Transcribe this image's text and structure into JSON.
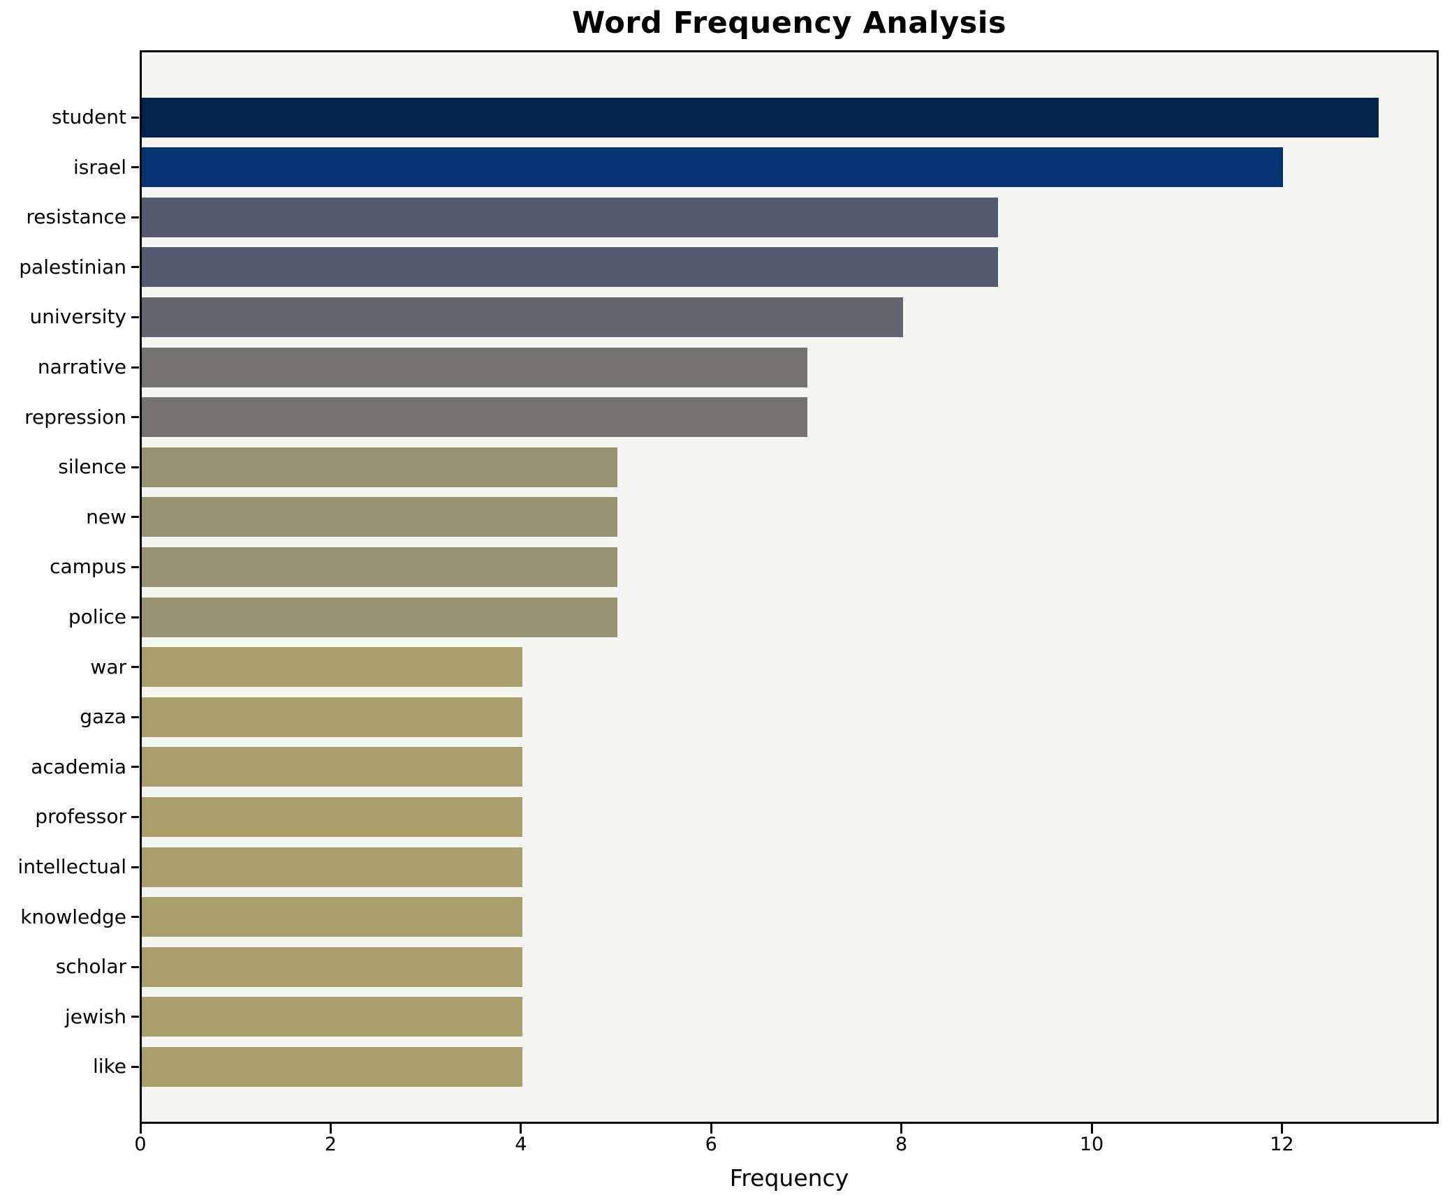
{
  "chart_data": {
    "type": "bar",
    "orientation": "horizontal",
    "title": "Word Frequency Analysis",
    "xlabel": "Frequency",
    "ylabel": "",
    "categories": [
      "student",
      "israel",
      "resistance",
      "palestinian",
      "university",
      "narrative",
      "repression",
      "silence",
      "new",
      "campus",
      "police",
      "war",
      "gaza",
      "academia",
      "professor",
      "intellectual",
      "knowledge",
      "scholar",
      "jewish",
      "like"
    ],
    "values": [
      13,
      12,
      9,
      9,
      8,
      7,
      7,
      5,
      5,
      5,
      5,
      4,
      4,
      4,
      4,
      4,
      4,
      4,
      4,
      4
    ],
    "bar_colors": [
      "#01234e",
      "#04336f",
      "#555b6e",
      "#555b6e",
      "#62646f",
      "#747370",
      "#747370",
      "#989272",
      "#989272",
      "#989272",
      "#989272",
      "#a99f6b",
      "#a99f6b",
      "#a99f6b",
      "#a99f6b",
      "#a99f6b",
      "#a99f6b",
      "#a99f6b",
      "#a99f6b",
      "#a99f6b"
    ],
    "xticks": [
      0,
      2,
      4,
      6,
      8,
      10,
      12
    ],
    "xlim": [
      0,
      13.65
    ],
    "grid": false,
    "legend": null,
    "plot_background": "#f5f5f4",
    "figure_background": "#ffffff",
    "axis_color": "#000000"
  }
}
